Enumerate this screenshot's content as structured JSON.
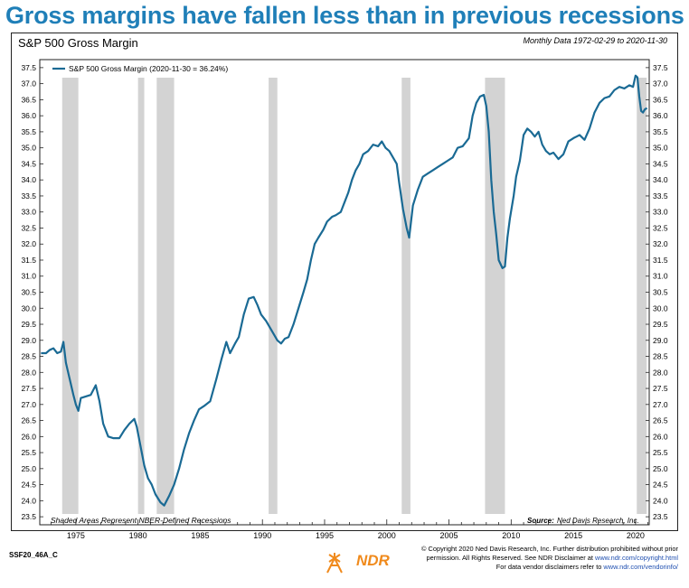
{
  "headline": "Gross margins have fallen less than in previous recessions",
  "footer": {
    "code": "SSF20_46A_C",
    "logo_text": "NDR",
    "copyright_line1": "© Copyright 2020 Ned Davis Research, Inc. Further distribution prohibited without prior",
    "copyright_line2_pre": "permission. All Rights Reserved. See NDR Disclaimer at ",
    "copyright_line2_link": "www.ndr.com/copyright.html",
    "copyright_line3_pre": "For data vendor disclaimers refer to ",
    "copyright_line3_link": "www.ndr.com/vendorinfo/"
  },
  "chart_data": {
    "type": "line",
    "title": "S&P 500 Gross Margin",
    "range_note": "Monthly Data 1972-02-29 to 2020-11-30",
    "legend_label": "S&P 500 Gross Margin (2020-11-30 = 36.24%)",
    "legend_placement": "top-left",
    "shading_note": "Shaded Areas Represent NBER-Defined Recessions",
    "source_label": "Source:",
    "source_value": "Ned Davis Research, Inc.",
    "xlim": [
      1972.1,
      2021.1
    ],
    "ylim": [
      23.25,
      37.75
    ],
    "x_ticks": [
      1975,
      1980,
      1985,
      1990,
      1995,
      2000,
      2005,
      2010,
      2015,
      2020
    ],
    "y_ticks": [
      "23.5",
      "24.0",
      "24.5",
      "25.0",
      "25.5",
      "26.0",
      "26.5",
      "27.0",
      "27.5",
      "28.0",
      "28.5",
      "29.0",
      "29.5",
      "30.0",
      "30.5",
      "31.0",
      "31.5",
      "32.0",
      "32.5",
      "33.0",
      "33.5",
      "34.0",
      "34.5",
      "35.0",
      "35.5",
      "36.0",
      "36.5",
      "37.0",
      "37.5"
    ],
    "recessions": [
      [
        1973.9,
        1975.2
      ],
      [
        1980.0,
        1980.5
      ],
      [
        1981.5,
        1982.9
      ],
      [
        1990.5,
        1991.2
      ],
      [
        2001.2,
        2001.9
      ],
      [
        2007.9,
        2009.5
      ],
      [
        2020.1,
        2020.9
      ]
    ],
    "series": [
      {
        "name": "S&P 500 Gross Margin",
        "color": "#1a6a94",
        "points": [
          [
            1972.2,
            28.6
          ],
          [
            1972.6,
            28.6
          ],
          [
            1972.9,
            28.7
          ],
          [
            1973.2,
            28.75
          ],
          [
            1973.5,
            28.6
          ],
          [
            1973.8,
            28.65
          ],
          [
            1974.0,
            28.95
          ],
          [
            1974.2,
            28.3
          ],
          [
            1974.5,
            27.8
          ],
          [
            1974.8,
            27.3
          ],
          [
            1975.0,
            27.0
          ],
          [
            1975.2,
            26.8
          ],
          [
            1975.4,
            27.2
          ],
          [
            1975.8,
            27.25
          ],
          [
            1976.2,
            27.3
          ],
          [
            1976.6,
            27.6
          ],
          [
            1976.9,
            27.1
          ],
          [
            1977.2,
            26.4
          ],
          [
            1977.6,
            26.0
          ],
          [
            1978.0,
            25.95
          ],
          [
            1978.5,
            25.95
          ],
          [
            1978.9,
            26.2
          ],
          [
            1979.3,
            26.4
          ],
          [
            1979.7,
            26.55
          ],
          [
            1979.9,
            26.3
          ],
          [
            1980.2,
            25.7
          ],
          [
            1980.5,
            25.1
          ],
          [
            1980.8,
            24.7
          ],
          [
            1981.1,
            24.5
          ],
          [
            1981.4,
            24.2
          ],
          [
            1981.8,
            23.95
          ],
          [
            1982.1,
            23.85
          ],
          [
            1982.5,
            24.15
          ],
          [
            1982.9,
            24.5
          ],
          [
            1983.3,
            25.0
          ],
          [
            1983.7,
            25.6
          ],
          [
            1984.1,
            26.1
          ],
          [
            1984.5,
            26.5
          ],
          [
            1984.9,
            26.85
          ],
          [
            1985.3,
            26.95
          ],
          [
            1985.8,
            27.1
          ],
          [
            1986.3,
            27.8
          ],
          [
            1986.7,
            28.4
          ],
          [
            1987.1,
            28.95
          ],
          [
            1987.4,
            28.6
          ],
          [
            1987.8,
            28.9
          ],
          [
            1988.1,
            29.1
          ],
          [
            1988.5,
            29.8
          ],
          [
            1988.9,
            30.3
          ],
          [
            1989.3,
            30.35
          ],
          [
            1989.6,
            30.1
          ],
          [
            1989.9,
            29.8
          ],
          [
            1990.3,
            29.6
          ],
          [
            1990.6,
            29.4
          ],
          [
            1990.9,
            29.2
          ],
          [
            1991.2,
            29.0
          ],
          [
            1991.5,
            28.9
          ],
          [
            1991.8,
            29.05
          ],
          [
            1992.1,
            29.1
          ],
          [
            1992.5,
            29.5
          ],
          [
            1992.9,
            30.0
          ],
          [
            1993.3,
            30.5
          ],
          [
            1993.6,
            30.9
          ],
          [
            1993.9,
            31.5
          ],
          [
            1994.2,
            32.0
          ],
          [
            1994.5,
            32.2
          ],
          [
            1994.9,
            32.45
          ],
          [
            1995.2,
            32.7
          ],
          [
            1995.6,
            32.85
          ],
          [
            1995.9,
            32.9
          ],
          [
            1996.3,
            33.0
          ],
          [
            1996.6,
            33.3
          ],
          [
            1996.9,
            33.6
          ],
          [
            1997.2,
            34.0
          ],
          [
            1997.5,
            34.3
          ],
          [
            1997.8,
            34.5
          ],
          [
            1998.1,
            34.8
          ],
          [
            1998.5,
            34.9
          ],
          [
            1998.9,
            35.1
          ],
          [
            1999.3,
            35.05
          ],
          [
            1999.6,
            35.2
          ],
          [
            1999.9,
            35.0
          ],
          [
            2000.2,
            34.9
          ],
          [
            2000.5,
            34.7
          ],
          [
            2000.8,
            34.5
          ],
          [
            2001.0,
            33.9
          ],
          [
            2001.3,
            33.1
          ],
          [
            2001.6,
            32.5
          ],
          [
            2001.8,
            32.2
          ],
          [
            2002.1,
            33.2
          ],
          [
            2002.5,
            33.7
          ],
          [
            2002.9,
            34.1
          ],
          [
            2003.3,
            34.2
          ],
          [
            2003.7,
            34.3
          ],
          [
            2004.1,
            34.4
          ],
          [
            2004.5,
            34.5
          ],
          [
            2004.9,
            34.6
          ],
          [
            2005.3,
            34.7
          ],
          [
            2005.7,
            35.0
          ],
          [
            2006.1,
            35.05
          ],
          [
            2006.6,
            35.3
          ],
          [
            2006.9,
            36.0
          ],
          [
            2007.2,
            36.4
          ],
          [
            2007.5,
            36.6
          ],
          [
            2007.8,
            36.65
          ],
          [
            2008.0,
            36.3
          ],
          [
            2008.2,
            35.5
          ],
          [
            2008.4,
            34.0
          ],
          [
            2008.6,
            33.0
          ],
          [
            2008.8,
            32.3
          ],
          [
            2009.0,
            31.5
          ],
          [
            2009.3,
            31.25
          ],
          [
            2009.5,
            31.3
          ],
          [
            2009.7,
            32.2
          ],
          [
            2009.9,
            32.8
          ],
          [
            2010.2,
            33.5
          ],
          [
            2010.4,
            34.1
          ],
          [
            2010.7,
            34.6
          ],
          [
            2011.0,
            35.4
          ],
          [
            2011.3,
            35.6
          ],
          [
            2011.6,
            35.5
          ],
          [
            2011.9,
            35.35
          ],
          [
            2012.2,
            35.5
          ],
          [
            2012.5,
            35.1
          ],
          [
            2012.8,
            34.9
          ],
          [
            2013.1,
            34.8
          ],
          [
            2013.4,
            34.85
          ],
          [
            2013.8,
            34.65
          ],
          [
            2014.2,
            34.8
          ],
          [
            2014.6,
            35.2
          ],
          [
            2015.0,
            35.3
          ],
          [
            2015.5,
            35.4
          ],
          [
            2015.9,
            35.25
          ],
          [
            2016.3,
            35.6
          ],
          [
            2016.7,
            36.1
          ],
          [
            2017.1,
            36.4
          ],
          [
            2017.5,
            36.55
          ],
          [
            2017.9,
            36.6
          ],
          [
            2018.3,
            36.8
          ],
          [
            2018.7,
            36.9
          ],
          [
            2019.1,
            36.85
          ],
          [
            2019.5,
            36.95
          ],
          [
            2019.8,
            36.9
          ],
          [
            2020.0,
            37.25
          ],
          [
            2020.15,
            37.2
          ],
          [
            2020.3,
            36.6
          ],
          [
            2020.45,
            36.15
          ],
          [
            2020.6,
            36.1
          ],
          [
            2020.75,
            36.2
          ],
          [
            2020.92,
            36.24
          ]
        ]
      }
    ]
  }
}
